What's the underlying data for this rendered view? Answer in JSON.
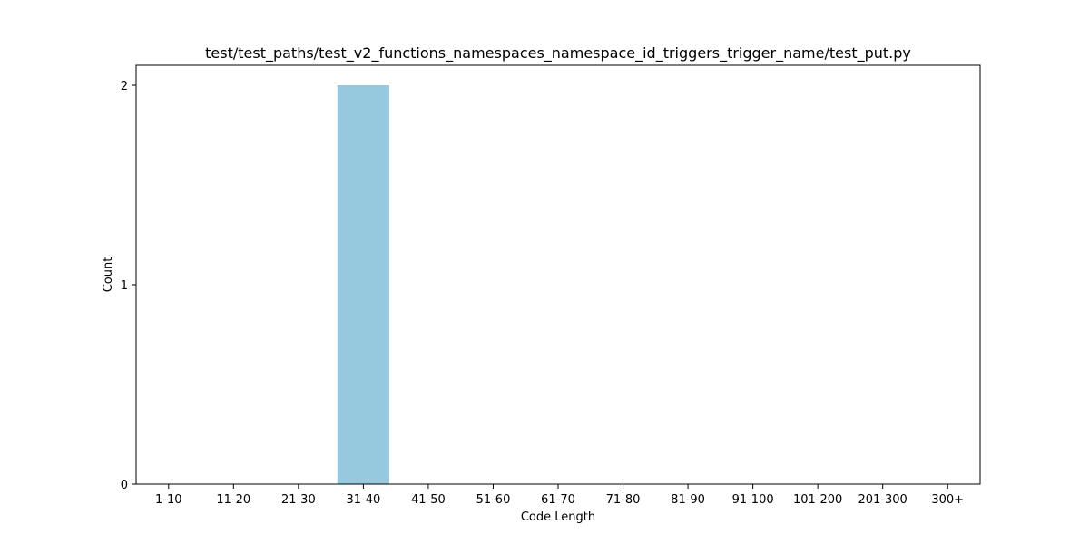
{
  "chart_data": {
    "type": "bar",
    "title": "test/test_paths/test_v2_functions_namespaces_namespace_id_triggers_trigger_name/test_put.py",
    "xlabel": "Code Length",
    "ylabel": "Count",
    "categories": [
      "1-10",
      "11-20",
      "21-30",
      "31-40",
      "41-50",
      "51-60",
      "61-70",
      "71-80",
      "81-90",
      "91-100",
      "101-200",
      "201-300",
      "300+"
    ],
    "values": [
      0,
      0,
      0,
      2,
      0,
      0,
      0,
      0,
      0,
      0,
      0,
      0,
      0
    ],
    "ylim": [
      0,
      2.1
    ],
    "yticks": [
      0,
      1,
      2
    ],
    "bar_color": "#96c9de",
    "grid": false,
    "legend": "none"
  }
}
